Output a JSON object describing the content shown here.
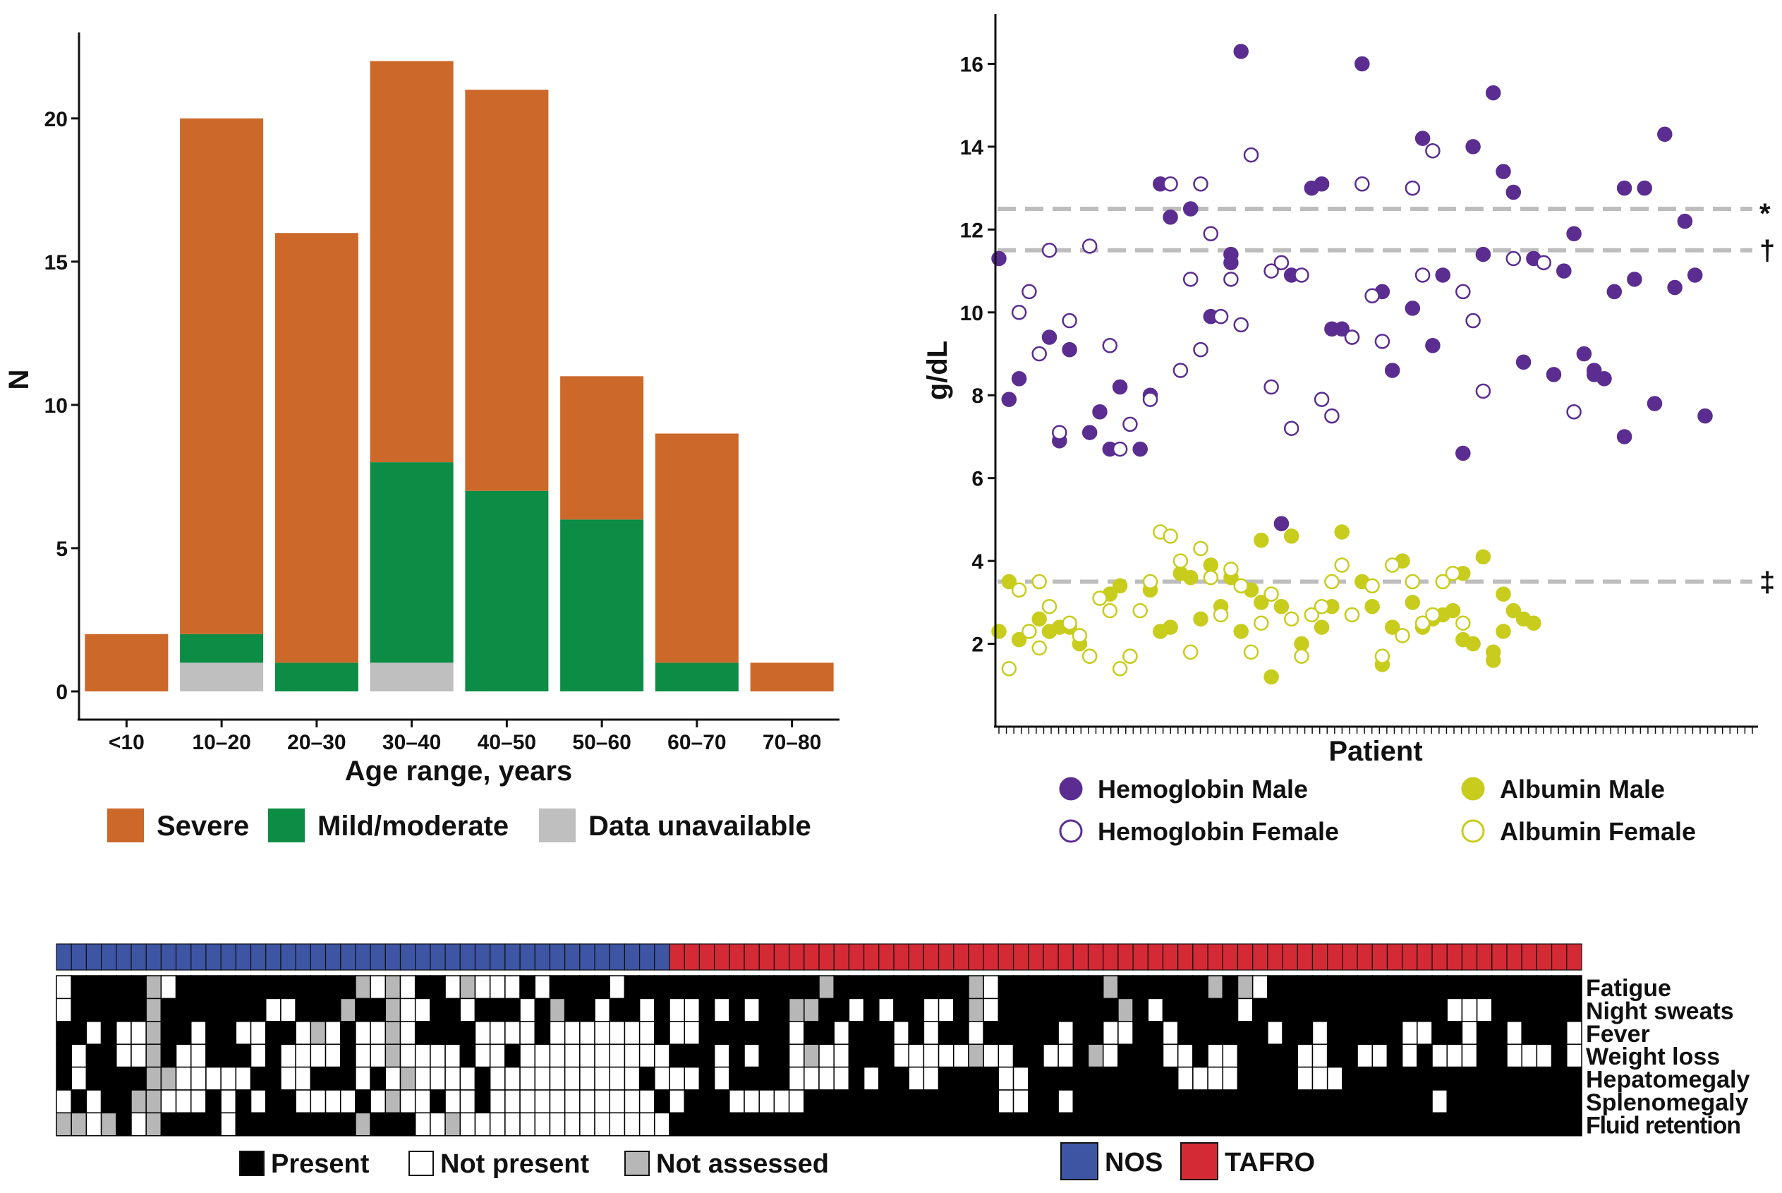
{
  "chart_data": [
    {
      "type": "bar",
      "stacked": true,
      "title": "",
      "xlabel": "Age range, years",
      "ylabel": "N",
      "ylim": [
        0,
        23
      ],
      "yticks": [
        0,
        5,
        10,
        15,
        20
      ],
      "categories": [
        "<10",
        "10–20",
        "20–30",
        "30–40",
        "40–50",
        "50–60",
        "60–70",
        "70–80"
      ],
      "series": [
        {
          "name": "Data unavailable",
          "color": "#c0bfbf",
          "values": [
            0,
            1,
            0,
            1,
            0,
            0,
            0,
            0
          ]
        },
        {
          "name": "Mild/moderate",
          "color": "#0c8c45",
          "values": [
            0,
            1,
            1,
            7,
            7,
            6,
            1,
            0
          ]
        },
        {
          "name": "Severe",
          "color": "#cb682a",
          "values": [
            2,
            18,
            15,
            14,
            14,
            5,
            8,
            1
          ]
        }
      ],
      "legend": [
        "Severe",
        "Mild/moderate",
        "Data unavailable"
      ]
    },
    {
      "type": "scatter",
      "xlabel": "Patient",
      "ylabel": "g/dL",
      "ylim": [
        0,
        17.2
      ],
      "yticks": [
        2,
        4,
        6,
        8,
        10,
        12,
        14,
        16
      ],
      "x_count": 102,
      "reference_lines": [
        {
          "y": 12.5,
          "symbol": "*"
        },
        {
          "y": 11.5,
          "symbol": "†"
        },
        {
          "y": 3.5,
          "symbol": "‡"
        }
      ],
      "colors": {
        "hemoglobin": "#5b2d91",
        "albumin": "#c8cc1c"
      },
      "legend": [
        {
          "name": "Hemoglobin Male",
          "measure": "hemoglobin",
          "filled": true
        },
        {
          "name": "Hemoglobin Female",
          "measure": "hemoglobin",
          "filled": false
        },
        {
          "name": "Albumin Male",
          "measure": "albumin",
          "filled": true
        },
        {
          "name": "Albumin Female",
          "measure": "albumin",
          "filled": false
        }
      ],
      "series": [
        {
          "name": "Hemoglobin Male",
          "measure": "hemoglobin",
          "filled": true,
          "points": [
            [
              1,
              11.3
            ],
            [
              2,
              7.9
            ],
            [
              3,
              8.4
            ],
            [
              6,
              9.4
            ],
            [
              7,
              6.9
            ],
            [
              8,
              9.1
            ],
            [
              10,
              7.1
            ],
            [
              11,
              7.6
            ],
            [
              12,
              6.7
            ],
            [
              13,
              8.2
            ],
            [
              15,
              6.7
            ],
            [
              16,
              8.0
            ],
            [
              17,
              13.1
            ],
            [
              18,
              12.3
            ],
            [
              20,
              12.5
            ],
            [
              22,
              9.9
            ],
            [
              24,
              11.2
            ],
            [
              24,
              11.4
            ],
            [
              25,
              16.3
            ],
            [
              29,
              4.9
            ],
            [
              30,
              10.9
            ],
            [
              32,
              13.0
            ],
            [
              33,
              13.1
            ],
            [
              34,
              9.6
            ],
            [
              35,
              9.6
            ],
            [
              37,
              16.0
            ],
            [
              39,
              10.5
            ],
            [
              40,
              8.6
            ],
            [
              42,
              10.1
            ],
            [
              43,
              14.2
            ],
            [
              44,
              9.2
            ],
            [
              45,
              10.9
            ],
            [
              47,
              6.6
            ],
            [
              48,
              14.0
            ],
            [
              49,
              11.4
            ],
            [
              50,
              15.3
            ],
            [
              51,
              13.4
            ],
            [
              52,
              12.9
            ],
            [
              53,
              8.8
            ],
            [
              54,
              11.3
            ],
            [
              56,
              8.5
            ],
            [
              57,
              11.0
            ],
            [
              58,
              11.9
            ],
            [
              59,
              9.0
            ],
            [
              60,
              8.5
            ],
            [
              60,
              8.6
            ],
            [
              61,
              8.4
            ],
            [
              62,
              10.5
            ],
            [
              63,
              13.0
            ],
            [
              63,
              7.0
            ],
            [
              64,
              10.8
            ],
            [
              65,
              13.0
            ],
            [
              66,
              7.8
            ],
            [
              67,
              14.3
            ],
            [
              68,
              10.6
            ],
            [
              69,
              12.2
            ],
            [
              70,
              10.9
            ],
            [
              71,
              7.5
            ]
          ]
        },
        {
          "name": "Hemoglobin Female",
          "measure": "hemoglobin",
          "filled": false,
          "points": [
            [
              3,
              10.0
            ],
            [
              4,
              10.5
            ],
            [
              5,
              9.0
            ],
            [
              6,
              11.5
            ],
            [
              7,
              7.1
            ],
            [
              8,
              9.8
            ],
            [
              10,
              11.6
            ],
            [
              12,
              9.2
            ],
            [
              13,
              6.7
            ],
            [
              14,
              7.3
            ],
            [
              16,
              7.9
            ],
            [
              18,
              13.1
            ],
            [
              19,
              8.6
            ],
            [
              20,
              10.8
            ],
            [
              21,
              9.1
            ],
            [
              21,
              13.1
            ],
            [
              22,
              11.9
            ],
            [
              23,
              9.9
            ],
            [
              24,
              10.8
            ],
            [
              25,
              9.7
            ],
            [
              26,
              13.8
            ],
            [
              28,
              8.2
            ],
            [
              28,
              11.0
            ],
            [
              29,
              11.2
            ],
            [
              30,
              7.2
            ],
            [
              31,
              10.9
            ],
            [
              33,
              7.9
            ],
            [
              34,
              7.5
            ],
            [
              36,
              9.4
            ],
            [
              36,
              9.4
            ],
            [
              37,
              13.1
            ],
            [
              38,
              10.4
            ],
            [
              39,
              9.3
            ],
            [
              42,
              13.0
            ],
            [
              43,
              10.9
            ],
            [
              44,
              13.9
            ],
            [
              47,
              10.5
            ],
            [
              48,
              9.8
            ],
            [
              49,
              8.1
            ],
            [
              52,
              11.3
            ],
            [
              55,
              11.2
            ],
            [
              58,
              7.6
            ]
          ]
        },
        {
          "name": "Albumin Male",
          "measure": "albumin",
          "filled": true,
          "points": [
            [
              1,
              2.3
            ],
            [
              2,
              3.5
            ],
            [
              3,
              2.1
            ],
            [
              5,
              2.6
            ],
            [
              6,
              2.3
            ],
            [
              7,
              2.4
            ],
            [
              8,
              2.4
            ],
            [
              9,
              2.0
            ],
            [
              10,
              1.7
            ],
            [
              12,
              3.2
            ],
            [
              13,
              3.4
            ],
            [
              14,
              1.7
            ],
            [
              16,
              3.3
            ],
            [
              17,
              2.3
            ],
            [
              18,
              2.4
            ],
            [
              19,
              3.7
            ],
            [
              20,
              3.6
            ],
            [
              21,
              2.6
            ],
            [
              22,
              3.9
            ],
            [
              23,
              2.9
            ],
            [
              24,
              3.6
            ],
            [
              25,
              2.3
            ],
            [
              26,
              3.3
            ],
            [
              27,
              3.0
            ],
            [
              27,
              4.5
            ],
            [
              28,
              1.2
            ],
            [
              29,
              2.9
            ],
            [
              30,
              4.6
            ],
            [
              31,
              2.0
            ],
            [
              33,
              2.4
            ],
            [
              34,
              2.9
            ],
            [
              35,
              4.7
            ],
            [
              36,
              2.7
            ],
            [
              37,
              3.5
            ],
            [
              38,
              2.9
            ],
            [
              39,
              1.5
            ],
            [
              40,
              2.4
            ],
            [
              41,
              4.0
            ],
            [
              42,
              3.0
            ],
            [
              43,
              2.4
            ],
            [
              44,
              2.6
            ],
            [
              45,
              2.7
            ],
            [
              46,
              2.8
            ],
            [
              47,
              2.1
            ],
            [
              47,
              3.7
            ],
            [
              48,
              2.0
            ],
            [
              49,
              4.1
            ],
            [
              50,
              1.6
            ],
            [
              50,
              1.8
            ],
            [
              51,
              2.3
            ],
            [
              51,
              3.2
            ],
            [
              52,
              2.8
            ],
            [
              53,
              2.6
            ],
            [
              54,
              2.5
            ]
          ]
        },
        {
          "name": "Albumin Female",
          "measure": "albumin",
          "filled": false,
          "points": [
            [
              2,
              1.4
            ],
            [
              3,
              3.3
            ],
            [
              4,
              2.3
            ],
            [
              5,
              3.5
            ],
            [
              5,
              1.9
            ],
            [
              6,
              2.9
            ],
            [
              8,
              2.5
            ],
            [
              9,
              2.2
            ],
            [
              10,
              1.7
            ],
            [
              11,
              3.1
            ],
            [
              12,
              2.8
            ],
            [
              13,
              1.4
            ],
            [
              14,
              1.7
            ],
            [
              15,
              2.8
            ],
            [
              16,
              3.5
            ],
            [
              17,
              4.7
            ],
            [
              18,
              4.6
            ],
            [
              19,
              4.0
            ],
            [
              20,
              1.8
            ],
            [
              21,
              4.3
            ],
            [
              22,
              3.6
            ],
            [
              23,
              2.7
            ],
            [
              24,
              3.8
            ],
            [
              25,
              3.4
            ],
            [
              26,
              1.8
            ],
            [
              27,
              2.5
            ],
            [
              28,
              3.2
            ],
            [
              30,
              2.6
            ],
            [
              31,
              1.7
            ],
            [
              32,
              2.7
            ],
            [
              33,
              2.9
            ],
            [
              34,
              3.5
            ],
            [
              35,
              3.9
            ],
            [
              36,
              2.7
            ],
            [
              38,
              3.4
            ],
            [
              39,
              1.7
            ],
            [
              40,
              3.9
            ],
            [
              41,
              2.2
            ],
            [
              42,
              3.5
            ],
            [
              43,
              2.5
            ],
            [
              44,
              2.7
            ],
            [
              45,
              3.5
            ],
            [
              46,
              3.7
            ],
            [
              47,
              2.5
            ]
          ]
        }
      ]
    },
    {
      "type": "heatmap",
      "rows": [
        "Fatigue",
        "Night sweats",
        "Fever",
        "Weight loss",
        "Hepatomegaly",
        "Splenomegaly",
        "Fluid retention"
      ],
      "group_counts": {
        "NOS": 41,
        "TAFRO": 61
      },
      "groups": [
        {
          "name": "NOS",
          "color": "#3e55a4",
          "count": 41
        },
        {
          "name": "TAFRO",
          "color": "#d42a36",
          "count": 61
        }
      ],
      "value_key": {
        "P": "Present",
        "N": "Not present",
        "A": "Not assessed"
      },
      "colors": {
        "P": "#000000",
        "N": "#ffffff",
        "A": "#b7b7b7"
      },
      "legend": [
        "Present",
        "Not present",
        "Not assessed"
      ],
      "matrix": [
        "NPPPPPANPPPPPPPPPPPPANANPPNANNNPNPPPPNPPPPPPPPPPPPPAPPPPPPPPPANPPPPPPPAPPPPPPAPANPPPPPPPPPPPPPPPPPPPPPPPPPPPPPPPP",
        "NPPPPPAPPPPPPPNNPPPAPPANNPPNPPPNPAPPNPPNPNNPNPNPPAAPPNPNPPNNPANPPPPPPPPAPNPPPPPNPPPPPPPPPPPPPNNNPPPPPPPPPPPPPPPP",
        "PPNPNNAPPNPPNNPPNANPNNANPPPPNNNNPNNNNNNNPNNPPPPPPNPPNPPPNPNPPNPPPPPNPPNNPPNPPPPPPNPPNPPPPPNNPPNPPNPPPNPPPPPPNPPNPPN",
        "PNPPNNAPNNPPPNPNNNNPNNANNNNPNNPNNNNNNNNNNPPPNPNPPNANNPPPNNNNNANNPPNNPANPPPNNPNNPPPPNNPPNNPNPNNNPPNNNPNNNNNPPAPNNPPP",
        "PNPPPPAANNNNNPPNNPPPNPNANNNNPNNNNNNNNNNPNNNPNPPPPNNNNPNPPNNPPPPNNPPPPPPPPPPNNNNPPPPNNNPPPPPPPPPPPPPPPPPPPPPPPP",
        "NPNPPAANNNPNPNPPNNNNPNANNPNNPNNNNNNNNNNNPNPPPNNNNNPPPPPPPPPPPPPNNPPNPPPPPPPPPPPPPPPPPPPPPPPPNPPPPPPPPPNPPPPPPPPPPP",
        "AANAPNAPPPPNPPPPPPPPAPPPNNANNNNNNNNNNNNNNPPPPPPPPPPPPPPPPPPPPPPPPPPPPPPPPPPPPPPPPPPPPPPPPPPPPPPPPPPPPPPPPPPPPPPP"
      ]
    }
  ]
}
